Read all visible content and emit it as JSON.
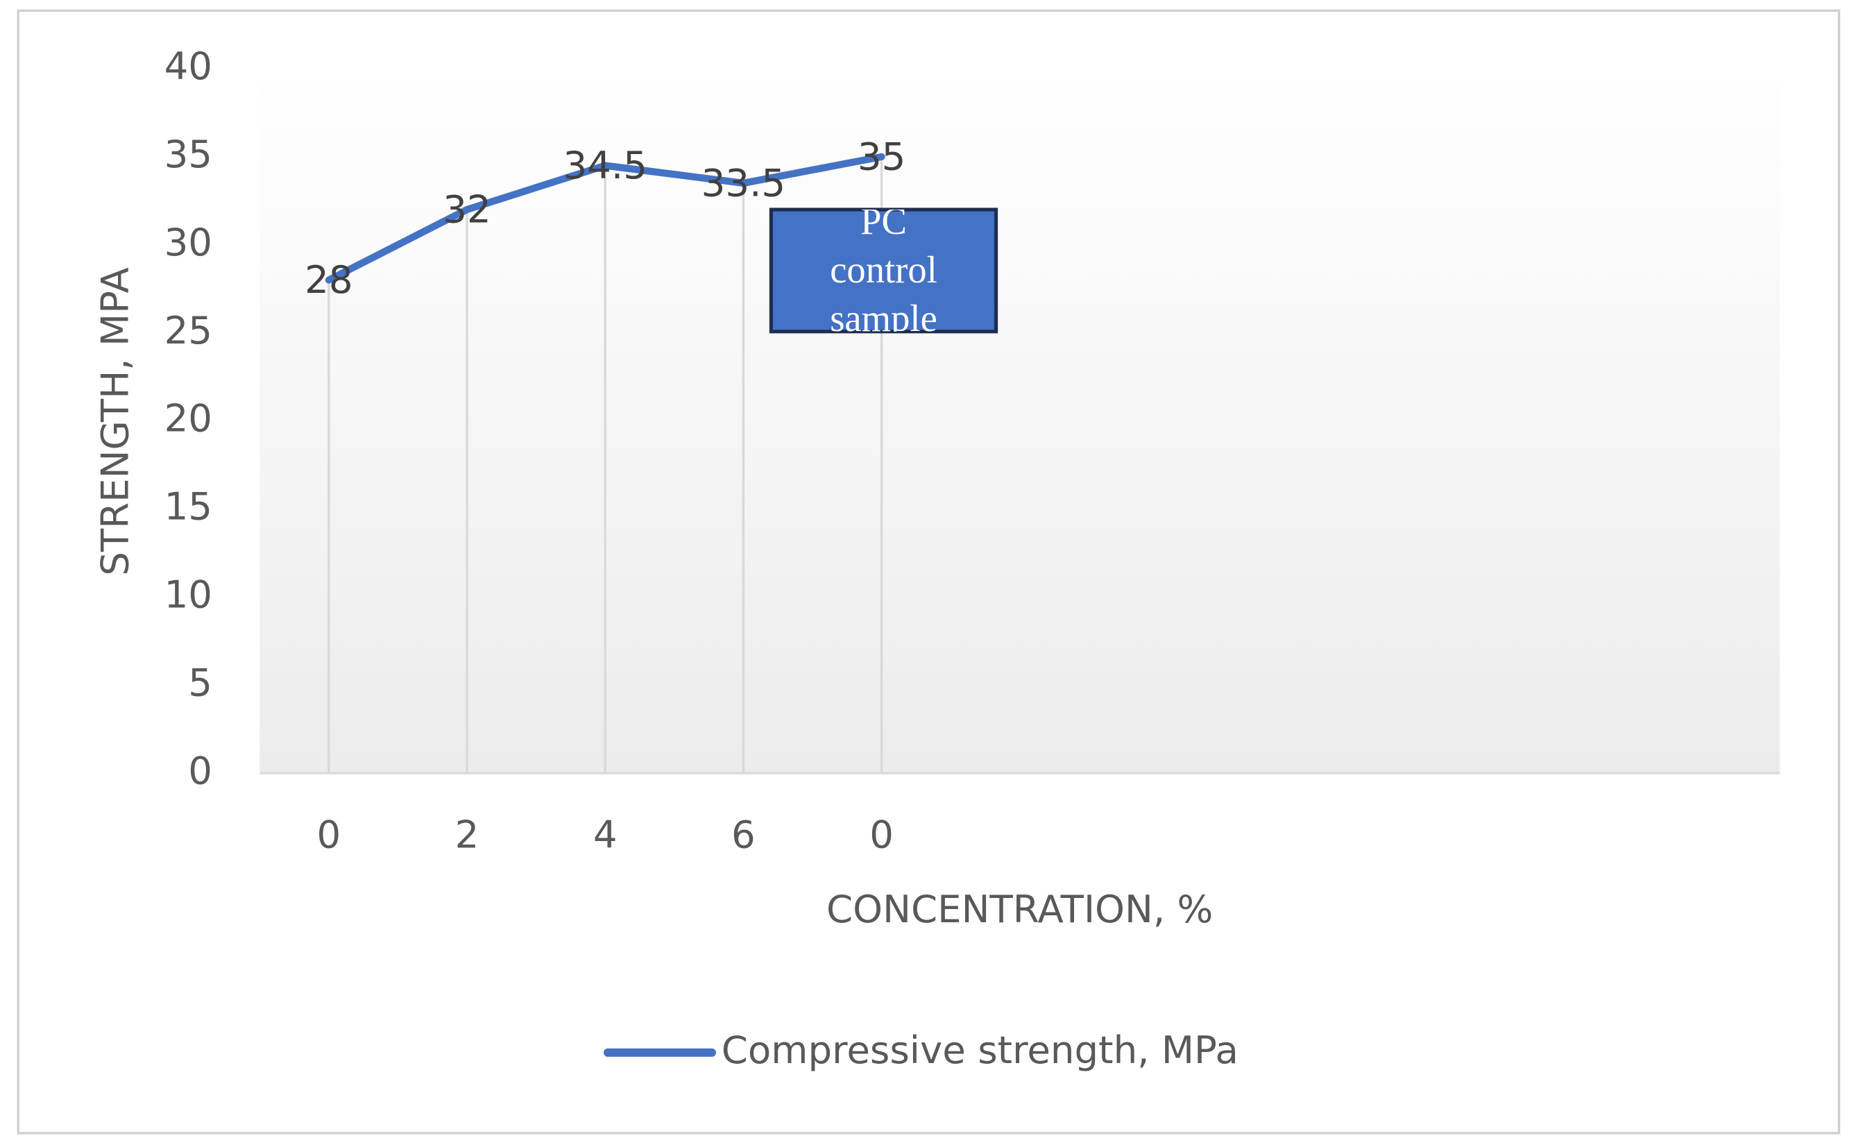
{
  "chart_data": {
    "type": "line",
    "categories": [
      "0",
      "2",
      "4",
      "6",
      "0",
      null,
      null,
      null,
      null,
      null,
      null
    ],
    "series": [
      {
        "name": "Compressive strength, MPa",
        "color": "#4472c4",
        "values": [
          28,
          32,
          34.5,
          33.5,
          35,
          null,
          null,
          null,
          null,
          null,
          null
        ]
      }
    ],
    "ylim": [
      0,
      40
    ],
    "yticks": [
      0,
      5,
      10,
      15,
      20,
      25,
      30,
      35,
      40
    ],
    "y_label": "STRENGTH, MPA",
    "x_label": "CONCENTRATION, %",
    "annotation": "PC control sample",
    "annotation_color": "#4472c4",
    "data_labels": true,
    "drop_lines": true,
    "legend": "bottom"
  }
}
